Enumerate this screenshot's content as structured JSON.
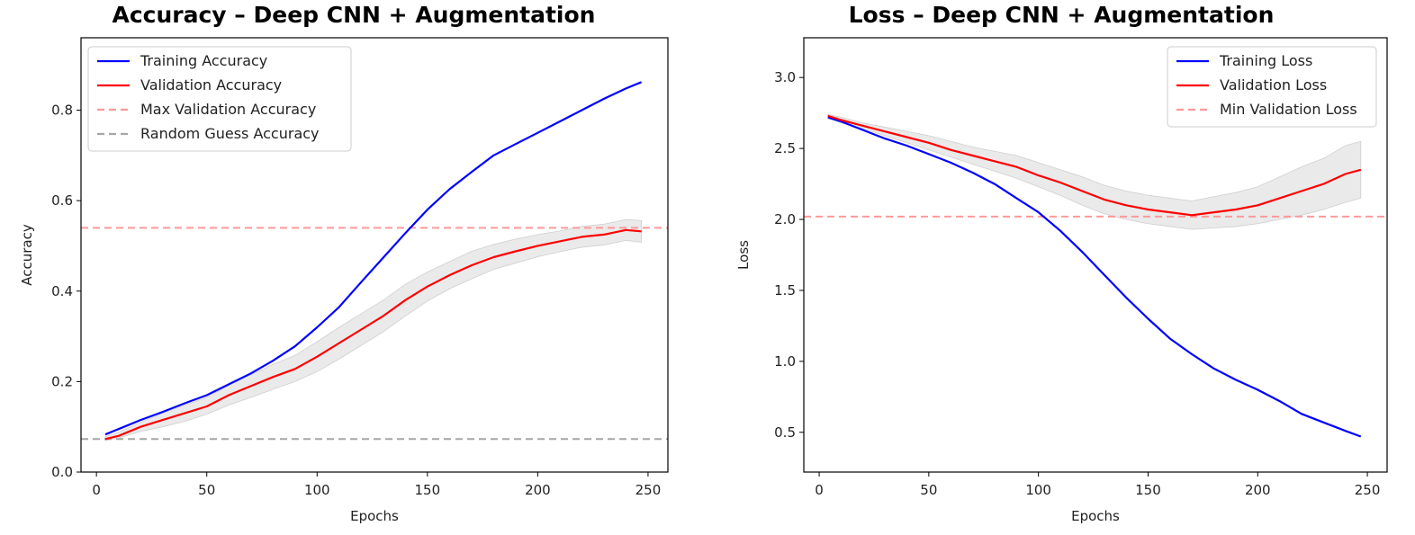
{
  "chart_data": [
    {
      "type": "line",
      "title": "Accuracy – Deep CNN + Augmentation",
      "xlabel": "Epochs",
      "ylabel": "Accuracy",
      "xlim": [
        -7,
        259
      ],
      "ylim": [
        0,
        0.96
      ],
      "xticks": [
        0,
        50,
        100,
        150,
        200,
        250
      ],
      "yticks": [
        0.0,
        0.2,
        0.4,
        0.6,
        0.8
      ],
      "legend_position": "top-left",
      "grid": false,
      "series": [
        {
          "name": "Training Accuracy",
          "color": "#0000ff",
          "style": "solid",
          "x": [
            4,
            10,
            20,
            30,
            40,
            50,
            60,
            70,
            80,
            90,
            100,
            110,
            120,
            130,
            140,
            150,
            160,
            170,
            180,
            190,
            200,
            210,
            220,
            230,
            240,
            247
          ],
          "y": [
            0.083,
            0.095,
            0.115,
            0.133,
            0.152,
            0.17,
            0.194,
            0.218,
            0.246,
            0.278,
            0.32,
            0.365,
            0.42,
            0.474,
            0.528,
            0.58,
            0.625,
            0.663,
            0.7,
            0.725,
            0.75,
            0.775,
            0.8,
            0.825,
            0.848,
            0.862
          ]
        },
        {
          "name": "Validation Accuracy",
          "color": "#ff0000",
          "style": "solid",
          "x": [
            4,
            10,
            20,
            30,
            40,
            50,
            60,
            70,
            80,
            90,
            100,
            110,
            120,
            130,
            140,
            150,
            160,
            170,
            180,
            190,
            200,
            210,
            220,
            230,
            240,
            247
          ],
          "y": [
            0.073,
            0.08,
            0.1,
            0.115,
            0.13,
            0.145,
            0.17,
            0.19,
            0.21,
            0.228,
            0.255,
            0.285,
            0.315,
            0.345,
            0.38,
            0.41,
            0.435,
            0.457,
            0.475,
            0.488,
            0.5,
            0.51,
            0.52,
            0.525,
            0.535,
            0.532
          ],
          "band_lower": [
            0.07,
            0.075,
            0.09,
            0.1,
            0.112,
            0.128,
            0.148,
            0.165,
            0.183,
            0.2,
            0.222,
            0.25,
            0.28,
            0.31,
            0.345,
            0.378,
            0.405,
            0.427,
            0.448,
            0.462,
            0.476,
            0.487,
            0.497,
            0.502,
            0.512,
            0.508
          ],
          "band_upper": [
            0.078,
            0.088,
            0.11,
            0.13,
            0.148,
            0.165,
            0.192,
            0.215,
            0.238,
            0.258,
            0.288,
            0.32,
            0.35,
            0.38,
            0.415,
            0.442,
            0.465,
            0.488,
            0.503,
            0.515,
            0.525,
            0.533,
            0.543,
            0.548,
            0.558,
            0.556
          ]
        },
        {
          "name": "Max Validation Accuracy",
          "color": "#ff9999",
          "style": "dashed",
          "hline": 0.54
        },
        {
          "name": "Random Guess Accuracy",
          "color": "#a6a6a6",
          "style": "dashed",
          "hline": 0.073
        }
      ]
    },
    {
      "type": "line",
      "title": "Loss – Deep CNN + Augmentation",
      "xlabel": "Epochs",
      "ylabel": "Loss",
      "xlim": [
        -7,
        259
      ],
      "ylim": [
        0.22,
        3.28
      ],
      "xticks": [
        0,
        50,
        100,
        150,
        200,
        250
      ],
      "yticks": [
        0.5,
        1.0,
        1.5,
        2.0,
        2.5,
        3.0
      ],
      "legend_position": "top-right",
      "grid": false,
      "series": [
        {
          "name": "Training Loss",
          "color": "#0000ff",
          "style": "solid",
          "x": [
            4,
            10,
            20,
            30,
            40,
            50,
            60,
            70,
            80,
            90,
            100,
            110,
            120,
            130,
            140,
            150,
            160,
            170,
            180,
            190,
            200,
            210,
            220,
            230,
            240,
            247
          ],
          "y": [
            2.72,
            2.69,
            2.63,
            2.57,
            2.52,
            2.46,
            2.4,
            2.33,
            2.25,
            2.15,
            2.05,
            1.92,
            1.77,
            1.61,
            1.45,
            1.3,
            1.16,
            1.05,
            0.95,
            0.87,
            0.8,
            0.72,
            0.63,
            0.57,
            0.51,
            0.47
          ]
        },
        {
          "name": "Validation Loss",
          "color": "#ff0000",
          "style": "solid",
          "x": [
            4,
            10,
            20,
            30,
            40,
            50,
            60,
            70,
            80,
            90,
            100,
            110,
            120,
            130,
            140,
            150,
            160,
            170,
            180,
            190,
            200,
            210,
            220,
            230,
            240,
            247
          ],
          "y": [
            2.73,
            2.7,
            2.66,
            2.62,
            2.58,
            2.54,
            2.49,
            2.45,
            2.41,
            2.37,
            2.31,
            2.26,
            2.2,
            2.14,
            2.1,
            2.07,
            2.05,
            2.03,
            2.05,
            2.07,
            2.1,
            2.15,
            2.2,
            2.25,
            2.32,
            2.35
          ],
          "band_lower": [
            2.71,
            2.68,
            2.64,
            2.59,
            2.54,
            2.49,
            2.44,
            2.39,
            2.34,
            2.29,
            2.23,
            2.17,
            2.1,
            2.04,
            2.0,
            1.97,
            1.95,
            1.93,
            1.94,
            1.95,
            1.97,
            2.0,
            2.03,
            2.07,
            2.12,
            2.15
          ],
          "band_upper": [
            2.74,
            2.72,
            2.68,
            2.65,
            2.62,
            2.59,
            2.55,
            2.51,
            2.48,
            2.45,
            2.4,
            2.35,
            2.3,
            2.24,
            2.2,
            2.17,
            2.15,
            2.13,
            2.16,
            2.19,
            2.23,
            2.3,
            2.37,
            2.43,
            2.52,
            2.55
          ]
        },
        {
          "name": "Min Validation Loss",
          "color": "#ff9999",
          "style": "dashed",
          "hline": 2.02
        }
      ]
    }
  ]
}
